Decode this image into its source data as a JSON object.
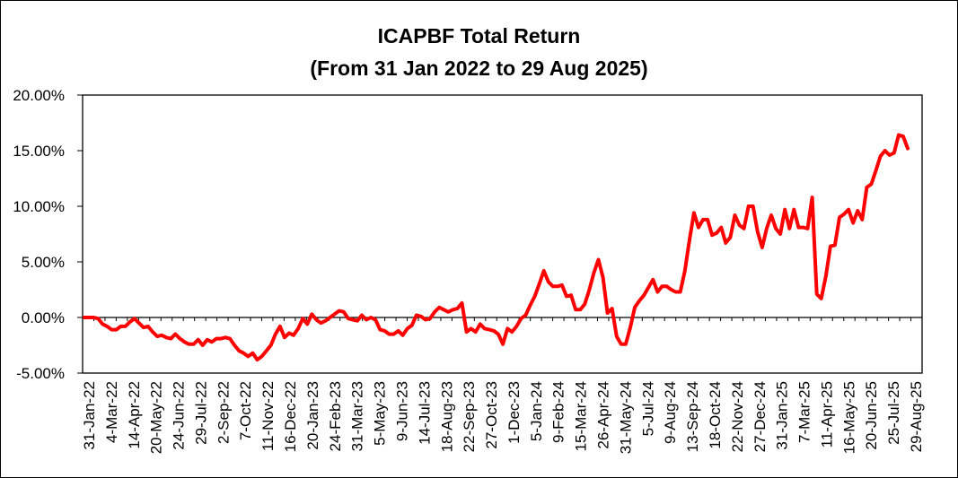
{
  "chart_data": {
    "type": "line",
    "title": "ICAPBF Total Return",
    "subtitle": "(From 31 Jan 2022 to 29 Aug 2025)",
    "xlabel": "",
    "ylabel": "",
    "ylim": [
      -0.05,
      0.2
    ],
    "yticks": [
      -0.05,
      0,
      0.05,
      0.1,
      0.15,
      0.2
    ],
    "ytick_labels": [
      "-5.00%",
      "0.00%",
      "5.00%",
      "10.00%",
      "15.00%",
      "20.00%"
    ],
    "grid": false,
    "legend": "none",
    "line_color": "#ff0000",
    "x_tick_labels": [
      "31-Jan-22",
      "4-Mar-22",
      "14-Apr-22",
      "20-May-22",
      "24-Jun-22",
      "29-Jul-22",
      "2-Sep-22",
      "7-Oct-22",
      "11-Nov-22",
      "16-Dec-22",
      "20-Jan-23",
      "24-Feb-23",
      "31-Mar-23",
      "5-May-23",
      "9-Jun-23",
      "14-Jul-23",
      "18-Aug-23",
      "22-Sep-23",
      "27-Oct-23",
      "1-Dec-23",
      "5-Jan-24",
      "9-Feb-24",
      "15-Mar-24",
      "26-Apr-24",
      "31-May-24",
      "5-Jul-24",
      "9-Aug-24",
      "13-Sep-24",
      "18-Oct-24",
      "22-Nov-24",
      "27-Dec-24",
      "31-Jan-25",
      "7-Mar-25",
      "11-Apr-25",
      "16-May-25",
      "20-Jun-25",
      "25-Jul-25",
      "29-Aug-25"
    ],
    "series": [
      {
        "values": [
          0.0,
          0.0,
          0.0,
          -0.001,
          -0.006,
          -0.008,
          -0.011,
          -0.011,
          -0.008,
          -0.008,
          -0.004,
          -0.001,
          -0.005,
          -0.009,
          -0.008,
          -0.013,
          -0.017,
          -0.016,
          -0.018,
          -0.019,
          -0.015,
          -0.019,
          -0.022,
          -0.024,
          -0.024,
          -0.02,
          -0.025,
          -0.02,
          -0.022,
          -0.019,
          -0.019,
          -0.018,
          -0.019,
          -0.025,
          -0.03,
          -0.032,
          -0.035,
          -0.032,
          -0.038,
          -0.035,
          -0.03,
          -0.025,
          -0.015,
          -0.008,
          -0.018,
          -0.014,
          -0.016,
          -0.01,
          -0.001,
          -0.006,
          0.003,
          -0.002,
          -0.005,
          -0.003,
          0.0,
          0.003,
          0.006,
          0.005,
          -0.001,
          -0.002,
          -0.003,
          0.002,
          -0.002,
          0.0,
          -0.002,
          -0.011,
          -0.012,
          -0.015,
          -0.015,
          -0.012,
          -0.016,
          -0.01,
          -0.007,
          0.002,
          0.001,
          -0.002,
          -0.001,
          0.005,
          0.009,
          0.007,
          0.005,
          0.007,
          0.008,
          0.013,
          -0.013,
          -0.01,
          -0.013,
          -0.006,
          -0.01,
          -0.011,
          -0.012,
          -0.015,
          -0.024,
          -0.01,
          -0.013,
          -0.008,
          -0.001,
          0.002,
          0.011,
          0.019,
          0.03,
          0.042,
          0.032,
          0.028,
          0.028,
          0.029,
          0.019,
          0.02,
          0.007,
          0.007,
          0.012,
          0.025,
          0.04,
          0.052,
          0.036,
          0.004,
          0.008,
          -0.017,
          -0.024,
          -0.024,
          -0.009,
          0.009,
          0.015,
          0.02,
          0.027,
          0.034,
          0.023,
          0.028,
          0.028,
          0.025,
          0.023,
          0.023,
          0.042,
          0.069,
          0.094,
          0.081,
          0.088,
          0.088,
          0.074,
          0.076,
          0.081,
          0.067,
          0.072,
          0.092,
          0.083,
          0.08,
          0.1,
          0.1,
          0.077,
          0.063,
          0.08,
          0.092,
          0.08,
          0.075,
          0.097,
          0.08,
          0.097,
          0.081,
          0.081,
          0.08,
          0.108,
          0.021,
          0.017,
          0.037,
          0.064,
          0.065,
          0.09,
          0.093,
          0.097,
          0.085,
          0.096,
          0.088,
          0.117,
          0.12,
          0.132,
          0.145,
          0.15,
          0.146,
          0.148,
          0.164,
          0.163,
          0.152
        ]
      }
    ]
  }
}
